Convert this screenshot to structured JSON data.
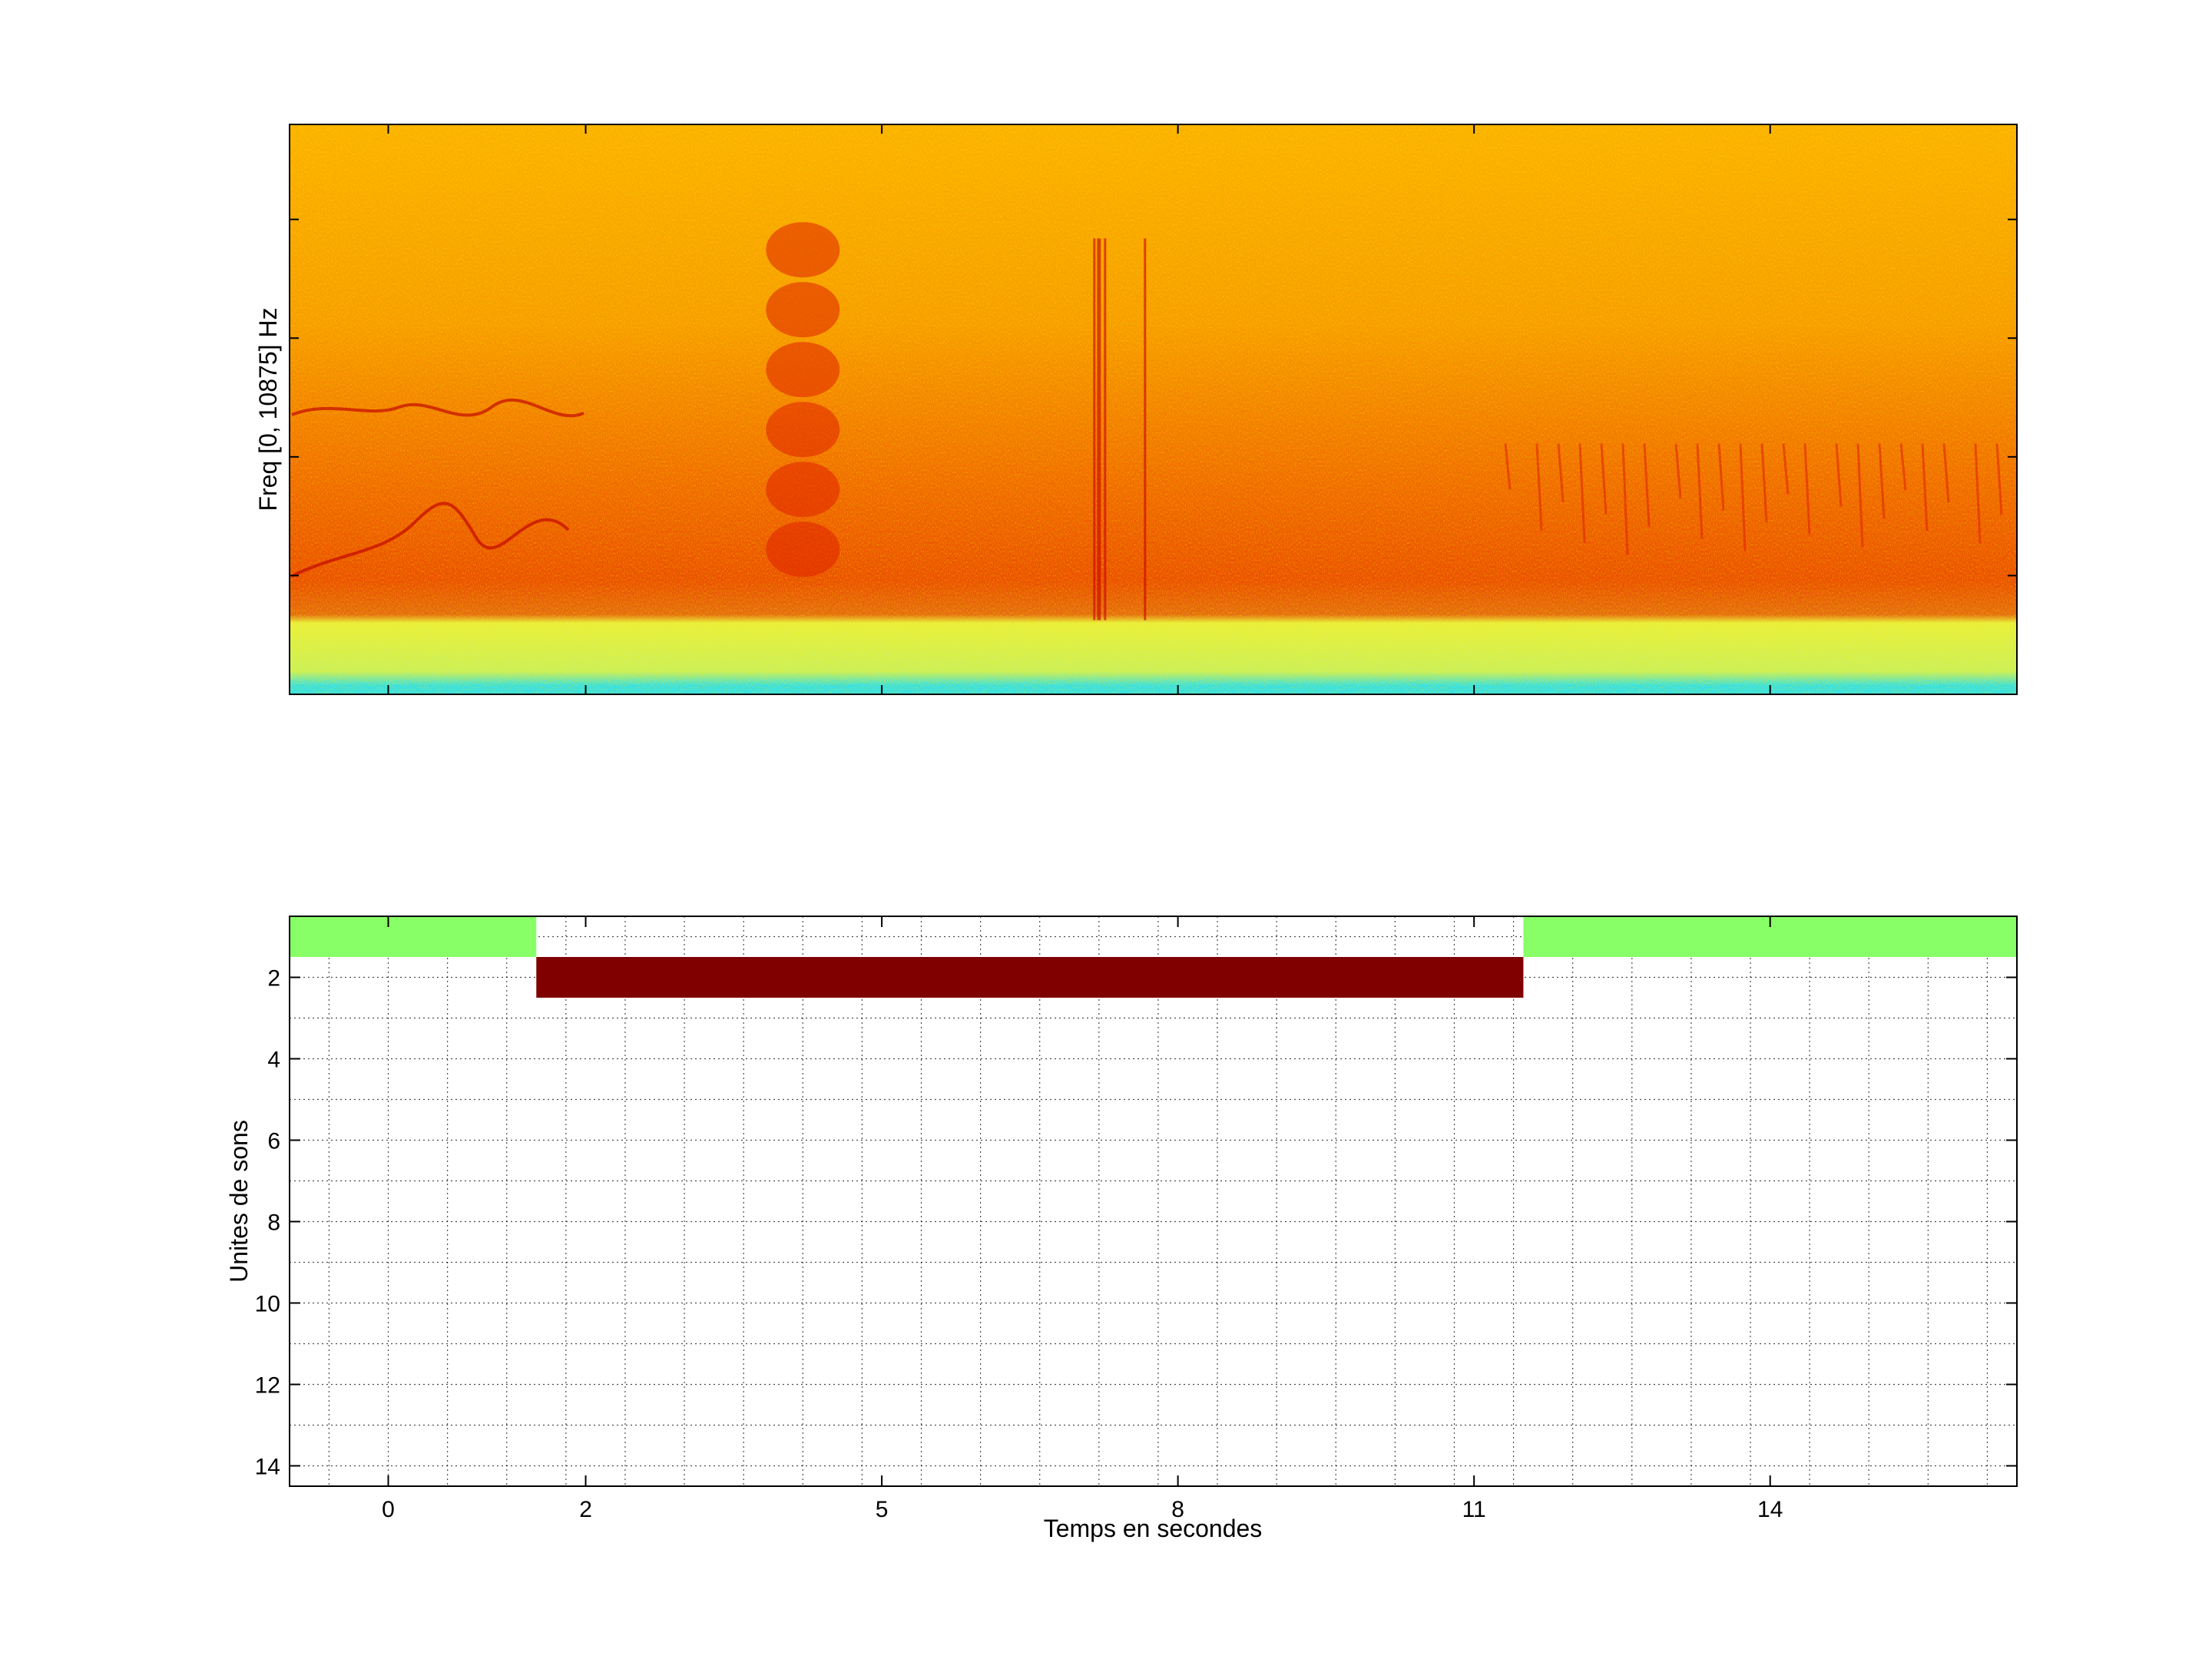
{
  "chart_data": [
    {
      "type": "heatmap",
      "title": "",
      "xlabel": "",
      "ylabel": "Freq [0, 10875] Hz",
      "grid": false,
      "colormap": "jet",
      "colors": {
        "background_hot": "#f7a000",
        "signal": "#e02000",
        "noise_floor": "#e8f040",
        "lowest_band": "#33e0e8"
      },
      "features": {
        "noise_floor_top_fraction": 0.13,
        "voiced_blob_time_s": 4.2,
        "broadband_click_time_s": 7.2
      }
    },
    {
      "type": "bar",
      "title": "",
      "xlabel": "Temps en secondes",
      "ylabel": "Unites de sons",
      "grid": true,
      "xlim": [
        -1,
        16.5
      ],
      "ylim": [
        0.5,
        14.5
      ],
      "y_reversed": true,
      "x_ticks": [
        0,
        2,
        5,
        8,
        11,
        14
      ],
      "y_ticks": [
        2,
        4,
        6,
        8,
        10,
        12,
        14
      ],
      "x_minor_step": 0.6,
      "segments": [
        {
          "unit": 1,
          "start": -1.2,
          "end": 1.5,
          "color": "#88ff66"
        },
        {
          "unit": 2,
          "start": 1.5,
          "end": 11.5,
          "color": "#800000"
        },
        {
          "unit": 1,
          "start": 11.5,
          "end": 16.5,
          "color": "#88ff66"
        }
      ]
    }
  ]
}
